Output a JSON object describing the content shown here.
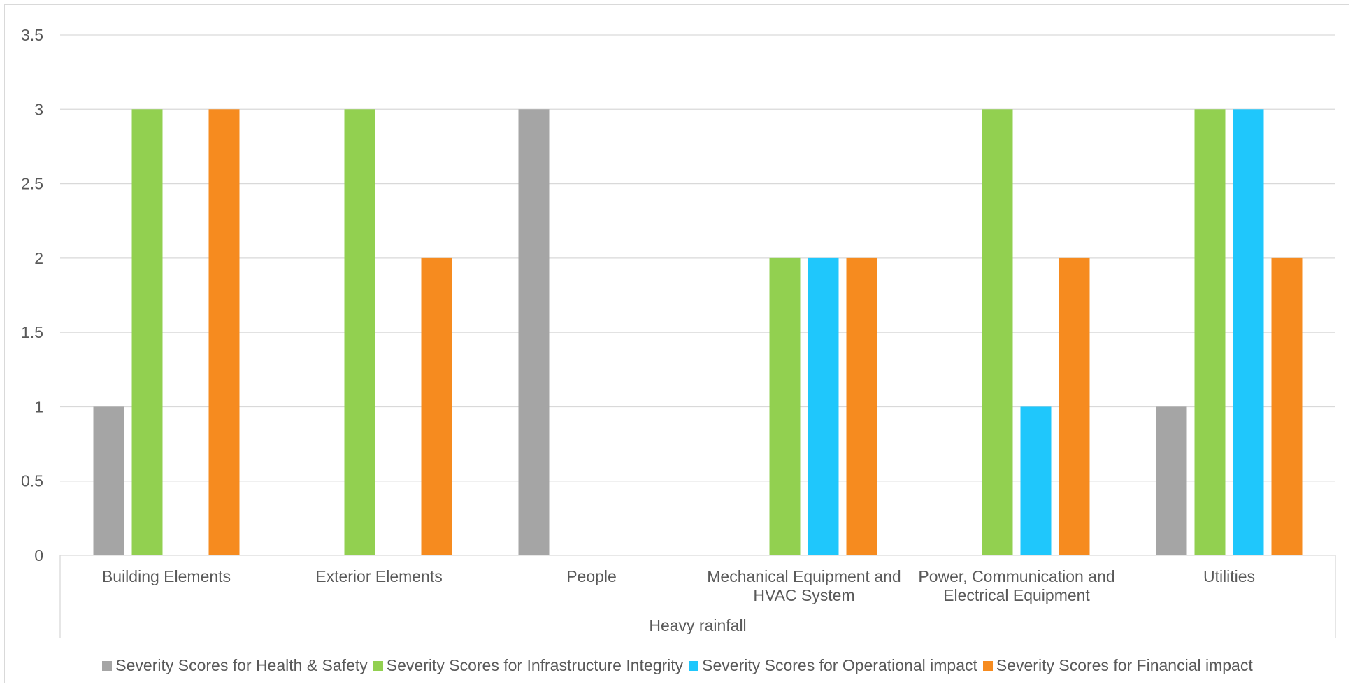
{
  "chart_data": {
    "type": "bar",
    "title": "",
    "xlabel": "",
    "ylabel": "",
    "group_label": "Heavy rainfall",
    "categories": [
      [
        "Building Elements"
      ],
      [
        "Exterior Elements"
      ],
      [
        "People"
      ],
      [
        "Mechanical Equipment and",
        "HVAC System"
      ],
      [
        "Power, Communication and",
        "Electrical Equipment"
      ],
      [
        "Utilities"
      ]
    ],
    "ylim": [
      0,
      3.5
    ],
    "yticks": [
      "0",
      "0.5",
      "1",
      "1.5",
      "2",
      "2.5",
      "3",
      "3.5"
    ],
    "grid": true,
    "legend_position": "bottom",
    "series": [
      {
        "name": "Severity Scores for Health & Safety",
        "color": "#a5a5a5",
        "values": [
          1,
          null,
          3,
          null,
          null,
          1
        ]
      },
      {
        "name": "Severity Scores for Infrastructure Integrity",
        "color": "#92d050",
        "values": [
          3,
          3,
          null,
          2,
          3,
          3
        ]
      },
      {
        "name": "Severity Scores for Operational impact",
        "color": "#1fc7fc",
        "values": [
          null,
          null,
          null,
          2,
          1,
          3
        ]
      },
      {
        "name": "Severity Scores for Financial impact",
        "color": "#f68b1f",
        "values": [
          3,
          2,
          null,
          2,
          2,
          2
        ]
      }
    ]
  }
}
